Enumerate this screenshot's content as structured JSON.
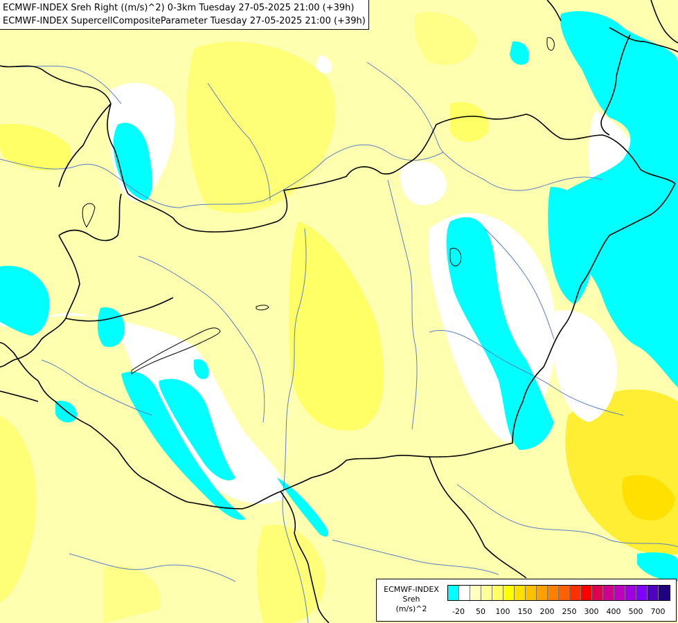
{
  "header": {
    "line1": "ECMWF-INDEX Sreh Right ((m/s)^2) 0-3km Tuesday 27-05-2025 21:00 (+39h)",
    "line2": "ECMWF-INDEX SupercellCompositeParameter Tuesday 27-05-2025 21:00 (+39h)"
  },
  "legend": {
    "title1": "ECMWF-INDEX",
    "title2": "Sreh",
    "title3": "(m/s)^2",
    "colors": [
      "#00ffff",
      "#ffffff",
      "#ffffc0",
      "#ffff99",
      "#ffff66",
      "#ffff00",
      "#ffe000",
      "#ffc000",
      "#ffa000",
      "#ff8000",
      "#ff6000",
      "#ff3000",
      "#ff0000",
      "#e00050",
      "#d00090",
      "#c000c0",
      "#a000e0",
      "#8000ff",
      "#5000c0",
      "#200080"
    ],
    "ticks": [
      "-20",
      "50",
      "100",
      "150",
      "200",
      "250",
      "300",
      "400",
      "500",
      "700"
    ]
  },
  "map": {
    "colors": {
      "cyan": "#00ffff",
      "white": "#ffffff",
      "pale_yellow": "#ffffc0",
      "light_yellow": "#ffff99",
      "yellow": "#ffff66",
      "bright_yellow": "#ffff00",
      "gold": "#ffe000",
      "border": "#000000",
      "river": "#5a7fc4"
    }
  }
}
